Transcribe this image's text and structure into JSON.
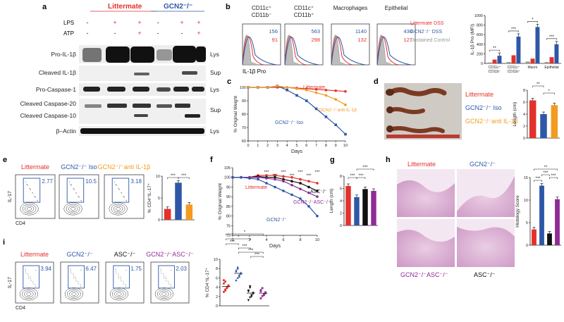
{
  "panel_letters": [
    "a",
    "b",
    "c",
    "d",
    "e",
    "f",
    "g",
    "h",
    "i"
  ],
  "colors": {
    "red": "#e3312b",
    "blue": "#2e57a7",
    "orange": "#f39b1f",
    "black": "#111111",
    "purple": "#8e2c95",
    "gray": "#999999"
  },
  "a": {
    "group_littermate": "Littermate",
    "group_gcn2": "GCN2⁻/⁻",
    "lps_label": "LPS",
    "atp_label": "ATP",
    "lps_signs": [
      "-",
      "+",
      "+",
      "-",
      "+",
      "+"
    ],
    "atp_signs": [
      "-",
      "-",
      "+",
      "-",
      "-",
      "+"
    ],
    "bands": [
      {
        "label": "Pro-IL-1β",
        "fraction": "Lys"
      },
      {
        "label": "Cleaved IL-1β",
        "fraction": "Sup"
      },
      {
        "label": "Pro-Caspase-1",
        "fraction": "Lys"
      },
      {
        "label": "Cleaved Caspase-20",
        "fraction": ""
      },
      {
        "label": "Cleaved Caspase-10",
        "fraction": "Sup"
      },
      {
        "label": "β–Actin",
        "fraction": "Lys"
      }
    ]
  },
  "b": {
    "cols": [
      {
        "title1": "CD11c⁺",
        "title2": "CD11b⁻",
        "v1": "156",
        "v2": "91"
      },
      {
        "title1": "CD11c⁺",
        "title2": "CD11b⁺",
        "v1": "563",
        "v2": "298"
      },
      {
        "title1": "Macrophages",
        "title2": "",
        "v1": "1140",
        "v2": "132"
      },
      {
        "title1": "Epithelial",
        "title2": "",
        "v1": "430",
        "v2": "127"
      }
    ],
    "xlabel": "IL-1β Pro",
    "legend": [
      "Littermate DSS",
      "GCN2⁻/⁻ DSS",
      "Unstained Control"
    ],
    "chart_data": {
      "type": "bar",
      "ylabel": "IL-1β Pro (MFI)",
      "categories": [
        "CD11c⁺ CD11b⁻",
        "CD11c⁺ CD11b⁺",
        "Macro",
        "Epithelial"
      ],
      "ylim": [
        0,
        1000
      ],
      "yticks": [
        "0",
        "200",
        "400",
        "600",
        "800",
        "1000"
      ],
      "series": [
        {
          "values": [
            20,
            30,
            40,
            30
          ]
        },
        {
          "values": [
            80,
            170,
            100,
            130
          ]
        },
        {
          "values": [
            160,
            560,
            760,
            400
          ]
        }
      ],
      "sig": [
        "**",
        "***",
        "*",
        "***"
      ]
    }
  },
  "c": {
    "chart_data": {
      "type": "line",
      "ylabel": "% Original Weight",
      "xlabel": "Days",
      "x": [
        0,
        1,
        2,
        3,
        4,
        5,
        6,
        7,
        8,
        9,
        10
      ],
      "ylim": [
        60,
        100
      ],
      "yticks": [
        "60",
        "70",
        "80",
        "90",
        "100"
      ],
      "xticks": [
        "0",
        "1",
        "2",
        "3",
        "4",
        "5",
        "6",
        "7",
        "8",
        "9",
        "10"
      ],
      "series": [
        {
          "name": "Littermate",
          "values": [
            100,
            100,
            100,
            100,
            100,
            99.5,
            99,
            98.5,
            98,
            97.5,
            97
          ]
        },
        {
          "name": "GCN2⁻/⁻ Iso",
          "values": [
            100,
            100,
            100,
            101,
            98,
            94,
            90,
            84,
            78,
            72,
            65
          ]
        },
        {
          "name": "GCN2⁻/⁻anti IL-1β",
          "values": [
            100,
            100,
            100,
            101,
            100,
            99,
            98,
            96,
            94,
            91,
            87
          ]
        }
      ]
    }
  },
  "d": {
    "legend": [
      "Littermate",
      "GCN2⁻/⁻ Iso",
      "GCN2⁻/⁻anti IL-1β"
    ],
    "chart_data": {
      "type": "bar",
      "ylabel": "Length (cm)",
      "ylim": [
        0,
        8
      ],
      "yticks": [
        "0",
        "2",
        "4",
        "6",
        "8"
      ],
      "values": [
        6.3,
        4.0,
        5.5
      ],
      "sig": [
        "**",
        "*"
      ]
    }
  },
  "e": {
    "titles": [
      "Littermate",
      "GCN2⁻/⁻ Iso",
      "GCN2⁻/⁻anti IL-1β"
    ],
    "values": [
      "2.77",
      "10.5",
      "3.18"
    ],
    "ylabel": "IL-17",
    "xlabel": "CD4",
    "chart_data": {
      "type": "bar",
      "ylabel": "% CD4⁺IL-17⁺",
      "ylim": [
        0,
        10
      ],
      "yticks": [
        "0",
        "5",
        "10"
      ],
      "values": [
        2.5,
        8.5,
        3.5
      ],
      "sig": [
        "***",
        "***"
      ]
    }
  },
  "f": {
    "chart_data": {
      "type": "line",
      "ylabel": "% Original Weight",
      "xlabel": "Days",
      "x": [
        0,
        1,
        2,
        3,
        4,
        5,
        6,
        7,
        8,
        9,
        10
      ],
      "ylim": [
        70,
        105
      ],
      "yticks": [
        "70",
        "75",
        "80",
        "85",
        "90",
        "95",
        "100",
        "105"
      ],
      "xticks": [
        "0",
        "2",
        "4",
        "6",
        "8",
        "10"
      ],
      "series": [
        {
          "name": "Littermate",
          "values": [
            100,
            100,
            100,
            101,
            101,
            101,
            100.5,
            100,
            99,
            98,
            97
          ]
        },
        {
          "name": "ASC⁻/⁻",
          "values": [
            100,
            100,
            100,
            100.5,
            100,
            100,
            99,
            98,
            97,
            95,
            93
          ]
        },
        {
          "name": "GCN2⁻/⁻ASC⁻/⁻",
          "values": [
            100,
            100,
            100,
            100,
            99.5,
            99,
            98,
            96,
            94,
            92,
            90
          ]
        },
        {
          "name": "GCN2⁻/⁻",
          "values": [
            100,
            100,
            99.5,
            99,
            97,
            95,
            93,
            91,
            89,
            85,
            80
          ]
        }
      ],
      "sig": [
        "***",
        "***",
        "***",
        "***",
        "***",
        "***",
        "***"
      ]
    }
  },
  "g": {
    "chart_data": {
      "type": "bar",
      "ylabel": "Length (cm)",
      "ylim": [
        0,
        8
      ],
      "yticks": [
        "0",
        "2",
        "4",
        "6",
        "8"
      ],
      "values": [
        6.4,
        4.6,
        5.9,
        5.6
      ],
      "sig": [
        "***",
        "***",
        "***"
      ]
    }
  },
  "h": {
    "labels": [
      "Littermate",
      "GCN2⁻/⁻",
      "GCN2⁻/⁻ASC⁻/⁻",
      "ASC⁻/⁻"
    ],
    "chart_data": {
      "type": "bar",
      "ylabel": "Histology Score",
      "ylim": [
        0,
        15
      ],
      "yticks": [
        "0",
        "5",
        "10",
        "15"
      ],
      "values": [
        3.5,
        13.2,
        2.6,
        10.2
      ],
      "sig": [
        "***",
        "***",
        "***",
        "**"
      ]
    }
  },
  "i": {
    "titles": [
      "Littermate",
      "GCN2⁻/⁻",
      "ASC⁻/⁻",
      "GCN2⁻/⁻ASC⁻/⁻"
    ],
    "values": [
      "3.94",
      "6.47",
      "1.75",
      "2.03"
    ],
    "ylabel": "IL-17",
    "xlabel": "CD4",
    "chart_data": {
      "type": "scatter",
      "ylabel": "% CD4⁺IL-17⁺",
      "ylim": [
        0,
        10
      ],
      "yticks": [
        "0",
        "2",
        "4",
        "6",
        "8",
        "10"
      ],
      "groups": [
        {
          "values": [
            3.0,
            3.5,
            4.0,
            4.4,
            4.8,
            5.2,
            3.8,
            4.2,
            5.5,
            3.3
          ]
        },
        {
          "values": [
            5.5,
            6.0,
            6.6,
            7.1,
            7.6,
            8.0,
            6.3,
            6.9,
            7.4,
            8.3
          ]
        },
        {
          "values": [
            1.2,
            1.8,
            2.3,
            2.8,
            3.3,
            3.9,
            2.0,
            2.6,
            3.1,
            4.2
          ]
        },
        {
          "values": [
            1.6,
            2.1,
            2.5,
            2.9,
            3.4,
            3.8,
            2.3,
            2.7,
            3.1
          ]
        }
      ],
      "sig": [
        "*",
        "*",
        "***",
        "***",
        "***",
        "***"
      ]
    }
  }
}
